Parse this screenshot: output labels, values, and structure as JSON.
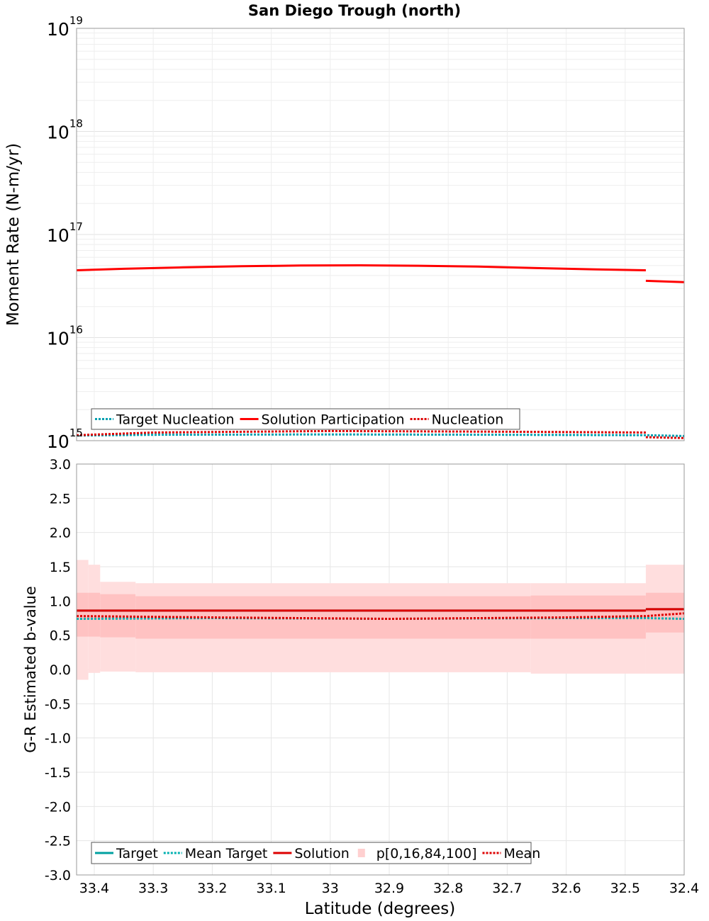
{
  "chart_data": [
    {
      "type": "line",
      "title": "San Diego Trough (north)",
      "xlabel": "Latitude (degrees)",
      "ylabel": "Moment Rate (N-m/yr)",
      "yscale": "log",
      "xlim": [
        33.43,
        32.4
      ],
      "ylim": [
        1000000000000000.0,
        1e+19
      ],
      "y_tick_labels": [
        {
          "base": "10",
          "exp": "15"
        },
        {
          "base": "10",
          "exp": "16"
        },
        {
          "base": "10",
          "exp": "17"
        },
        {
          "base": "10",
          "exp": "18"
        },
        {
          "base": "10",
          "exp": "19"
        }
      ],
      "legend": {
        "position": "bottom-left",
        "entries": [
          {
            "label": "Target Nucleation",
            "color": "#00a0b0",
            "style": "dotted"
          },
          {
            "label": "Solution Participation",
            "color": "#ff0000",
            "style": "solid"
          },
          {
            "label": "Nucleation",
            "color": "#dd0000",
            "style": "dotted"
          }
        ]
      },
      "series": [
        {
          "name": "Solution Participation",
          "color": "#ff0000",
          "style": "solid",
          "x": [
            33.43,
            33.35,
            33.25,
            33.15,
            33.05,
            32.95,
            32.85,
            32.75,
            32.65,
            32.55,
            32.465
          ],
          "values": [
            4.5e+16,
            4.65e+16,
            4.8e+16,
            4.92e+16,
            5e+16,
            5.02e+16,
            4.98e+16,
            4.88e+16,
            4.72e+16,
            4.58e+16,
            4.5e+16
          ]
        },
        {
          "name": "Solution Participation (south segment)",
          "color": "#ff0000",
          "style": "solid",
          "x": [
            32.465,
            32.4
          ],
          "values": [
            3.55e+16,
            3.45e+16
          ]
        },
        {
          "name": "Target Nucleation",
          "color": "#00a0b0",
          "style": "dotted",
          "x": [
            33.43,
            33.3,
            33.0,
            32.7,
            32.465,
            32.4
          ],
          "values": [
            1120000000000000.0,
            1140000000000000.0,
            1150000000000000.0,
            1140000000000000.0,
            1130000000000000.0,
            1110000000000000.0
          ]
        },
        {
          "name": "Nucleation",
          "color": "#dd0000",
          "style": "dotted",
          "x": [
            33.43,
            33.3,
            33.0,
            32.7,
            32.465
          ],
          "values": [
            1130000000000000.0,
            1200000000000000.0,
            1240000000000000.0,
            1220000000000000.0,
            1200000000000000.0
          ]
        },
        {
          "name": "Nucleation (south segment)",
          "color": "#dd0000",
          "style": "dotted",
          "x": [
            32.465,
            32.4
          ],
          "values": [
            1080000000000000.0,
            1060000000000000.0
          ]
        }
      ]
    },
    {
      "type": "line",
      "title": "",
      "xlabel": "Latitude (degrees)",
      "ylabel": "G-R Estimated b-value",
      "xlim": [
        33.43,
        32.4
      ],
      "ylim": [
        -3.0,
        3.0
      ],
      "x_ticks": [
        33.4,
        33.3,
        33.2,
        33.1,
        33.0,
        32.9,
        32.8,
        32.7,
        32.6,
        32.5,
        32.4
      ],
      "x_tick_labels": [
        "33.4",
        "33.3",
        "33.2",
        "33.1",
        "33",
        "32.9",
        "32.8",
        "32.7",
        "32.6",
        "32.5",
        "32.4"
      ],
      "y_ticks": [
        3.0,
        2.5,
        2.0,
        1.5,
        1.0,
        0.5,
        0.0,
        -0.5,
        -1.0,
        -1.5,
        -2.0,
        -2.5,
        -3.0
      ],
      "y_tick_labels": [
        "3.0",
        "2.5",
        "2.0",
        "1.5",
        "1.0",
        "0.5",
        "0.0",
        "-0.5",
        "-1.0",
        "-1.5",
        "-2.0",
        "-2.5",
        "-3.0"
      ],
      "legend": {
        "position": "bottom-left",
        "entries": [
          {
            "label": "Target",
            "color": "#00a0a0",
            "style": "solid"
          },
          {
            "label": "Mean Target",
            "color": "#00b0b0",
            "style": "dotted"
          },
          {
            "label": "Solution",
            "color": "#dd0000",
            "style": "solid"
          },
          {
            "label": "p[0,16,84,100]",
            "color": "#ffd0d0",
            "style": "band"
          },
          {
            "label": "Mean",
            "color": "#dd0000",
            "style": "dotted"
          }
        ]
      },
      "bands": {
        "name": "p[0,16,84,100]",
        "segments": [
          {
            "x0": 33.43,
            "x1": 33.41,
            "p0": -0.15,
            "p16": 0.48,
            "p84": 1.12,
            "p100": 1.6
          },
          {
            "x0": 33.41,
            "x1": 33.39,
            "p0": -0.05,
            "p16": 0.48,
            "p84": 1.12,
            "p100": 1.53
          },
          {
            "x0": 33.39,
            "x1": 33.33,
            "p0": -0.03,
            "p16": 0.47,
            "p84": 1.1,
            "p100": 1.28
          },
          {
            "x0": 33.33,
            "x1": 32.66,
            "p0": -0.04,
            "p16": 0.45,
            "p84": 1.07,
            "p100": 1.26
          },
          {
            "x0": 32.66,
            "x1": 32.465,
            "p0": -0.06,
            "p16": 0.45,
            "p84": 1.08,
            "p100": 1.26
          },
          {
            "x0": 32.465,
            "x1": 32.4,
            "p0": -0.06,
            "p16": 0.54,
            "p84": 1.12,
            "p100": 1.53
          }
        ]
      },
      "series": [
        {
          "name": "Target",
          "color": "#00a0a0",
          "style": "solid",
          "x": [
            33.43,
            32.465
          ],
          "values": [
            0.86,
            0.86
          ]
        },
        {
          "name": "Target (south segment)",
          "color": "#00a0a0",
          "style": "solid",
          "x": [
            32.465,
            32.4
          ],
          "values": [
            0.88,
            0.88
          ]
        },
        {
          "name": "Solution",
          "color": "#dd0000",
          "style": "solid",
          "x": [
            33.43,
            32.465
          ],
          "values": [
            0.86,
            0.86
          ]
        },
        {
          "name": "Solution (south segment)",
          "color": "#dd0000",
          "style": "solid",
          "x": [
            32.465,
            32.4
          ],
          "values": [
            0.88,
            0.88
          ]
        },
        {
          "name": "Mean Target",
          "color": "#00b0b0",
          "style": "dotted",
          "x": [
            33.43,
            33.2,
            32.9,
            32.6,
            32.465,
            32.4
          ],
          "values": [
            0.74,
            0.75,
            0.74,
            0.75,
            0.75,
            0.74
          ]
        },
        {
          "name": "Mean",
          "color": "#dd0000",
          "style": "dotted",
          "x": [
            33.43,
            33.2,
            32.9,
            32.6,
            32.465,
            32.4
          ],
          "values": [
            0.78,
            0.76,
            0.74,
            0.76,
            0.78,
            0.82
          ]
        }
      ]
    }
  ]
}
